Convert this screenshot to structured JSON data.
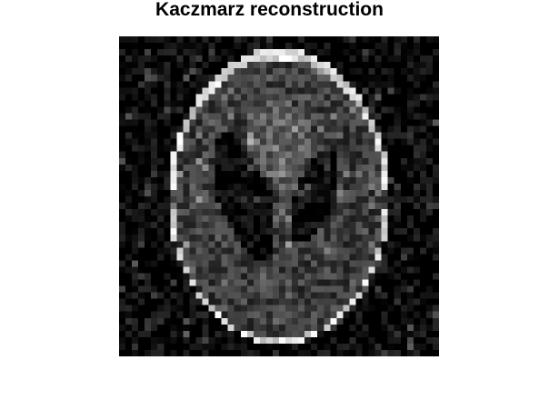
{
  "figure": {
    "title": "Kaczmarz reconstruction",
    "image": "Shepp-Logan phantom reconstruction, grayscale, 50x50 pixels, noisy background",
    "colormap": "gray"
  }
}
